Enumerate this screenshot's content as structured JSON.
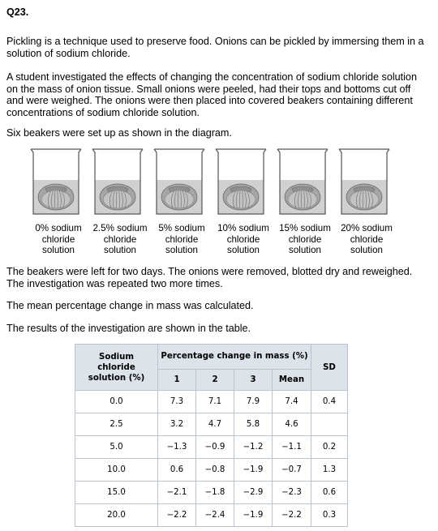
{
  "question_number": "Q23.",
  "paragraphs": {
    "p1": "Pickling is a technique used to preserve food. Onions can be pickled by immersing them in a solution of sodium chloride.",
    "p2": "A student investigated the effects of changing the concentration of sodium chloride solution on the mass of onion tissue. Small onions were peeled, had their tops and bottoms cut off and were weighed. The onions were then placed into covered beakers containing different concentrations of sodium chloride solution.",
    "p3": "Six beakers were set up as shown in the diagram.",
    "p4": "The beakers were left for two days. The onions were removed, blotted dry and reweighed. The investigation was repeated two more times.",
    "p5": "The mean percentage change in mass was calculated.",
    "p6": "The results of the investigation are shown in the table."
  },
  "beaker_labels": [
    {
      "l1": "0% sodium",
      "l2": "chloride",
      "l3": "solution"
    },
    {
      "l1": "2.5% sodium",
      "l2": "chloride",
      "l3": "solution"
    },
    {
      "l1": "5% sodium",
      "l2": "chloride",
      "l3": "solution"
    },
    {
      "l1": "10% sodium",
      "l2": "chloride",
      "l3": "solution"
    },
    {
      "l1": "15% sodium",
      "l2": "chloride",
      "l3": "solution"
    },
    {
      "l1": "20% sodium",
      "l2": "chloride",
      "l3": "solution"
    }
  ],
  "table": {
    "col_solution": "Sodium chloride solution (%)",
    "col_group": "Percentage change in mass (%)",
    "col_sd": "SD",
    "sub_headers": [
      "1",
      "2",
      "3",
      "Mean"
    ],
    "rows": [
      {
        "conc": "0.0",
        "r1": "7.3",
        "r2": "7.1",
        "r3": "7.9",
        "mean": "7.4",
        "sd": "0.4"
      },
      {
        "conc": "2.5",
        "r1": "3.2",
        "r2": "4.7",
        "r3": "5.8",
        "mean": "4.6",
        "sd": ""
      },
      {
        "conc": "5.0",
        "r1": "−1.3",
        "r2": "−0.9",
        "r3": "−1.2",
        "mean": "−1.1",
        "sd": "0.2"
      },
      {
        "conc": "10.0",
        "r1": "0.6",
        "r2": "−0.8",
        "r3": "−1.9",
        "mean": "−0.7",
        "sd": "1.3"
      },
      {
        "conc": "15.0",
        "r1": "−2.1",
        "r2": "−1.8",
        "r3": "−2.9",
        "mean": "−2.3",
        "sd": "0.6"
      },
      {
        "conc": "20.0",
        "r1": "−2.2",
        "r2": "−2.4",
        "r3": "−1.9",
        "mean": "−2.2",
        "sd": "0.3"
      }
    ]
  },
  "colors": {
    "header_fill": "#dce3ea",
    "table_border": "#b9c4cf",
    "solution_fill": "#d0d0d0",
    "onion_fill": "#a6a6a6"
  }
}
